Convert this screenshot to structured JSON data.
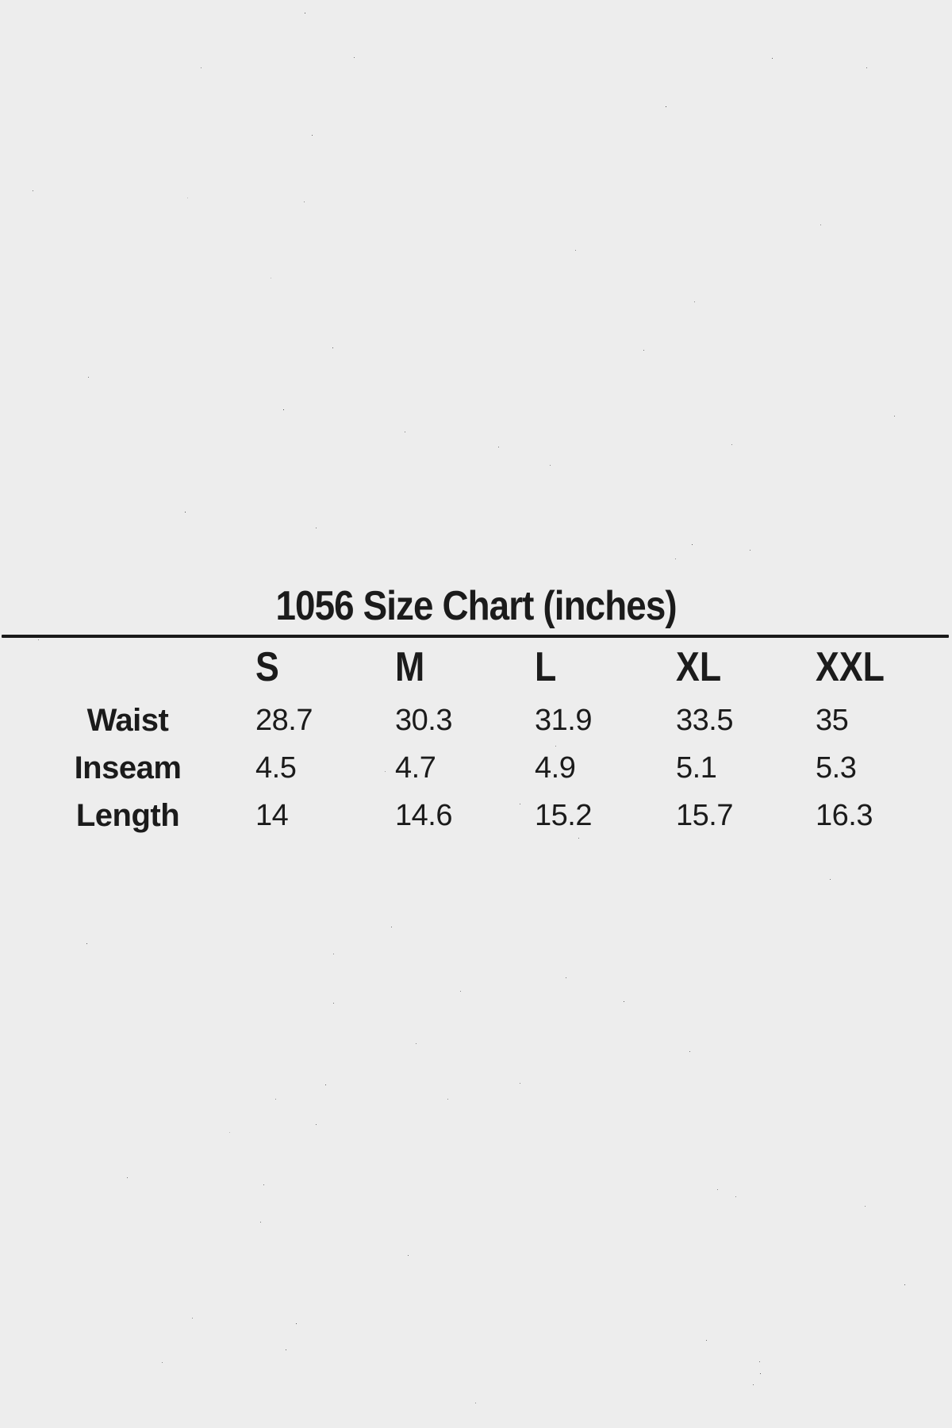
{
  "page": {
    "background_color": "#ededed",
    "text_color": "#1b1b1b",
    "rule_color": "#191919"
  },
  "title": "1056 Size Chart (inches)",
  "table": {
    "columns": [
      "S",
      "M",
      "L",
      "XL",
      "XXL"
    ],
    "rows": [
      {
        "label": "Waist",
        "values": [
          "28.7",
          "30.3",
          "31.9",
          "33.5",
          "35"
        ]
      },
      {
        "label": "Inseam",
        "values": [
          "4.5",
          "4.7",
          "4.9",
          "5.1",
          "5.3"
        ]
      },
      {
        "label": "Length",
        "values": [
          "14",
          "14.6",
          "15.2",
          "15.7",
          "16.3"
        ]
      }
    ]
  },
  "chart_data": {
    "type": "table",
    "title": "1056 Size Chart (inches)",
    "unit": "inches",
    "categories": [
      "S",
      "M",
      "L",
      "XL",
      "XXL"
    ],
    "series": [
      {
        "name": "Waist",
        "values": [
          28.7,
          30.3,
          31.9,
          33.5,
          35
        ]
      },
      {
        "name": "Inseam",
        "values": [
          4.5,
          4.7,
          4.9,
          5.1,
          5.3
        ]
      },
      {
        "name": "Length",
        "values": [
          14,
          14.6,
          15.2,
          15.7,
          16.3
        ]
      }
    ],
    "layout": {
      "header_rule": true,
      "grid": false,
      "row_labels_position": "left"
    }
  }
}
